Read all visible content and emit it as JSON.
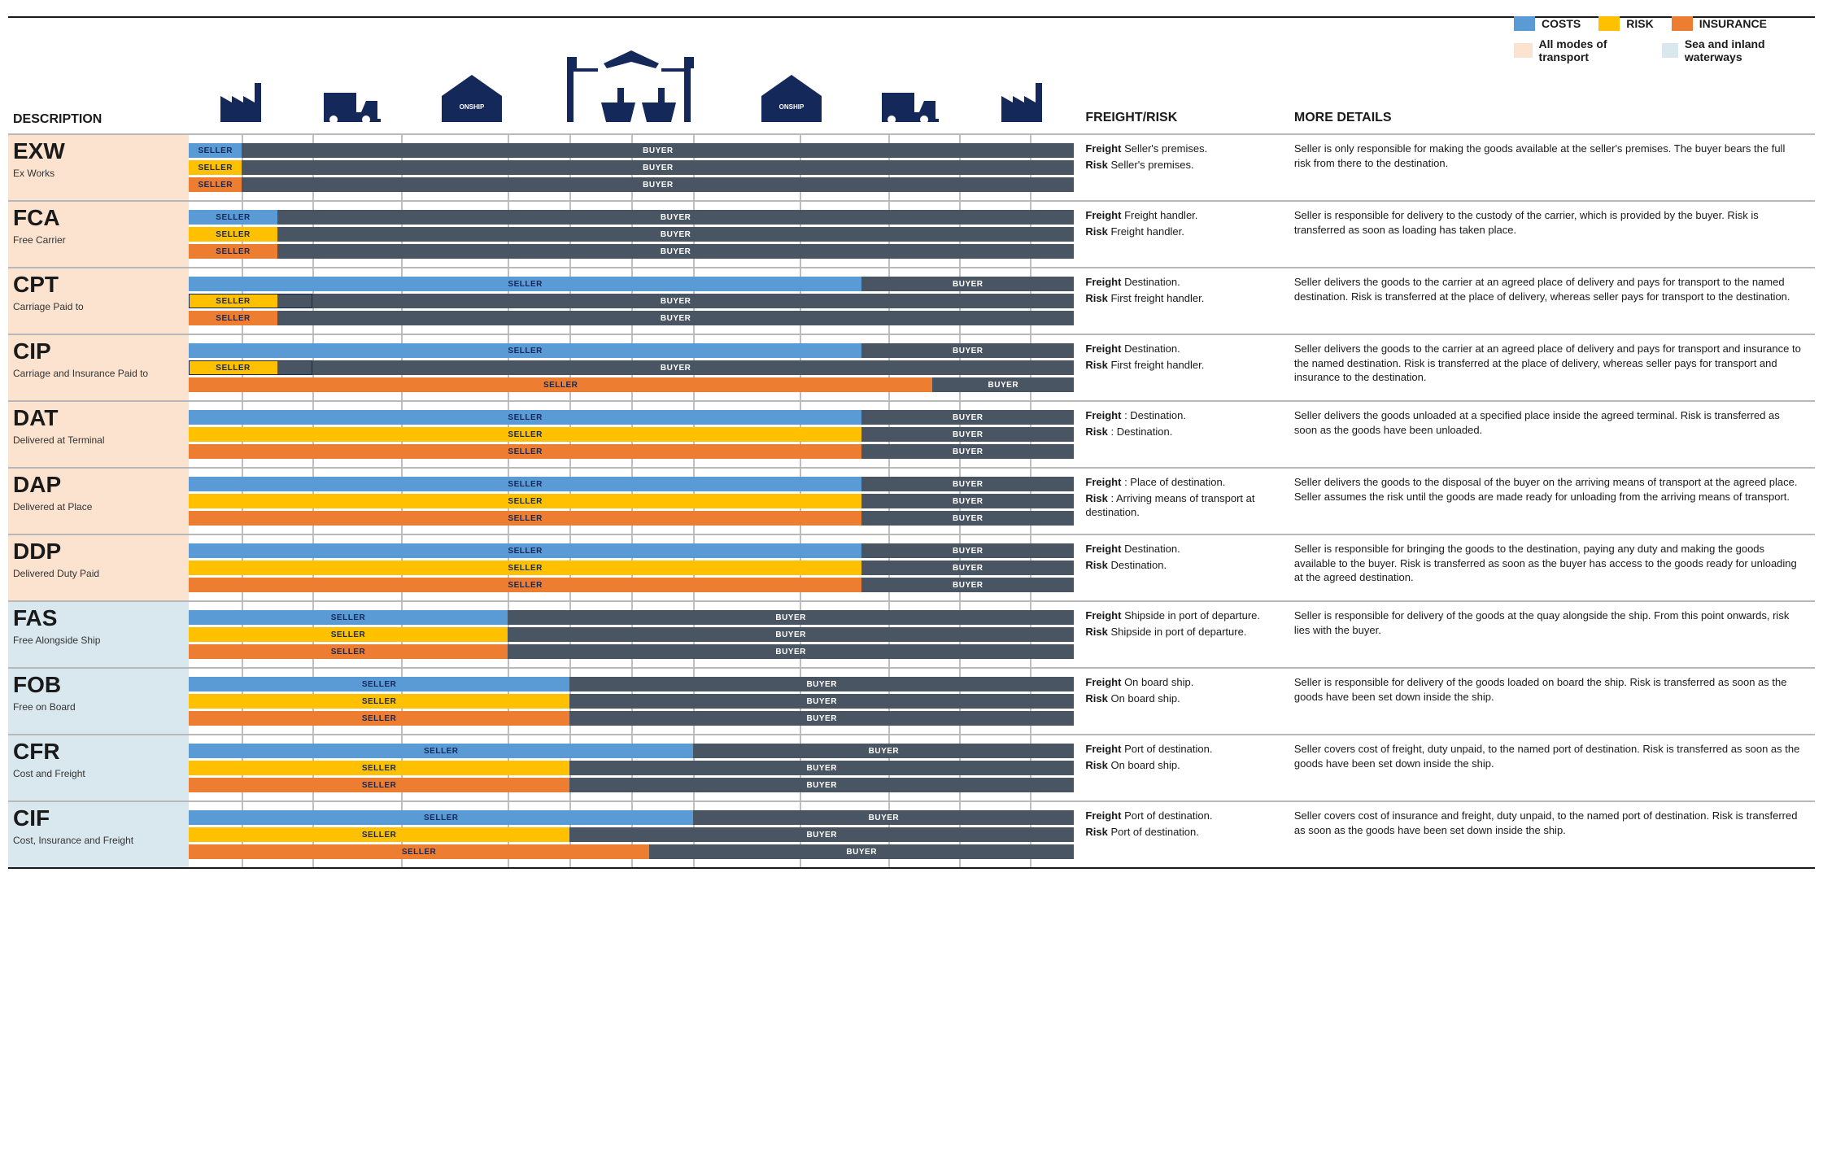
{
  "colors": {
    "costs": "#5b9bd5",
    "risk": "#ffc000",
    "insurance": "#ed7d31",
    "buyer": "#4a5563",
    "modeAll": "#fbe3d0",
    "modeSea": "#d9e8ef",
    "navy": "#14285a",
    "rule": "#b8b8b8"
  },
  "headers": {
    "desc": "DESCRIPTION",
    "fr": "FREIGHT/RISK",
    "det": "MORE DETAILS"
  },
  "legend": {
    "costs": "COSTS",
    "risk": "RISK",
    "insurance": "INSURANCE",
    "modeAll": "All modes of transport",
    "modeSea": "Sea and inland waterways"
  },
  "labels": {
    "seller": "SELLER",
    "buyer": "BUYER"
  },
  "guides": [
    6,
    14,
    24,
    36,
    43,
    50,
    57,
    69,
    79,
    87,
    95
  ],
  "terms": [
    {
      "code": "EXW",
      "name": "Ex Works",
      "mode": "all",
      "bars": {
        "costs": 6,
        "risk": 6,
        "insurance": 6
      },
      "freight": "Seller's premises.",
      "risk": "Seller's premises.",
      "details": "Seller is only responsible for making the goods available at the seller's premises. The buyer bears the full risk from there to the destination."
    },
    {
      "code": "FCA",
      "name": "Free Carrier",
      "mode": "all",
      "bars": {
        "costs": 10,
        "risk": 10,
        "insurance": 10
      },
      "freight": "Freight handler.",
      "risk": "Freight handler.",
      "details": "Seller is responsible for delivery to the custody of the carrier, which is provided by the buyer. Risk is transferred as soon as loading has taken place."
    },
    {
      "code": "CPT",
      "name": "Carriage Paid to",
      "mode": "all",
      "bars": {
        "costs": 76,
        "risk": 10,
        "insurance": 10
      },
      "riskOverlay": 14,
      "freight": " Destination.",
      "risk": "First freight handler.",
      "details": "Seller delivers the goods to the carrier at an agreed place of delivery and pays for transport to the named destination. Risk is transferred at the place of delivery, whereas seller pays for transport to the destination."
    },
    {
      "code": "CIP",
      "name": "Carriage and Insurance Paid to",
      "mode": "all",
      "bars": {
        "costs": 76,
        "risk": 10,
        "insurance": 84
      },
      "riskOverlay": 14,
      "freight": " Destination.",
      "risk": "First freight handler.",
      "details": "Seller delivers the goods to the carrier at an agreed place of delivery and pays for transport and insurance to the named destination. Risk is transferred at the place of delivery, whereas seller pays for transport and insurance to the destination."
    },
    {
      "code": "DAT",
      "name": "Delivered at Terminal",
      "mode": "all",
      "bars": {
        "costs": 76,
        "risk": 76,
        "insurance": 76
      },
      "freight": ": Destination.",
      "risk": ": Destination.",
      "details": "Seller delivers the goods unloaded at a specified place inside the agreed terminal. Risk is transferred as soon as the goods have been unloaded."
    },
    {
      "code": "DAP",
      "name": "Delivered at Place",
      "mode": "all",
      "bars": {
        "costs": 76,
        "risk": 76,
        "insurance": 76
      },
      "freight": ": Place of destination.",
      "risk": ": Arriving means of transport at destination.",
      "details": "Seller delivers the goods to the disposal of the buyer on the arriving means of transport at the agreed place. Seller assumes the risk until the goods are made ready for unloading from the arriving means of transport."
    },
    {
      "code": "DDP",
      "name": "Delivered Duty Paid",
      "mode": "all",
      "bars": {
        "costs": 76,
        "risk": 76,
        "insurance": 76
      },
      "freight": "Destination.",
      "risk": "Destination.",
      "details": "Seller is responsible for bringing the goods to the destination, paying any duty and making the goods available to the buyer. Risk is transferred as soon as the buyer has access to the goods ready for unloading at the agreed destination."
    },
    {
      "code": "FAS",
      "name": "Free Alongside Ship",
      "mode": "sea",
      "bars": {
        "costs": 36,
        "risk": 36,
        "insurance": 36
      },
      "freight": "Shipside in port of departure.",
      "risk": "Shipside in port of departure.",
      "details": "Seller is responsible for delivery of the goods at the quay alongside the ship. From this point onwards, risk lies with the buyer."
    },
    {
      "code": "FOB",
      "name": "Free on Board",
      "mode": "sea",
      "bars": {
        "costs": 43,
        "risk": 43,
        "insurance": 43
      },
      "freight": "On board ship.",
      "risk": "On board ship.",
      "details": "Seller is responsible for delivery of the goods loaded on board the ship. Risk is transferred as soon as the goods have been set down inside the ship."
    },
    {
      "code": "CFR",
      "name": "Cost and Freight",
      "mode": "sea",
      "bars": {
        "costs": 57,
        "risk": 43,
        "insurance": 43
      },
      "freight": "Port of destination.",
      "risk": "On board ship.",
      "details": "Seller covers cost of freight, duty unpaid, to the named port of destination. Risk is transferred as soon as the goods have been set down inside the ship."
    },
    {
      "code": "CIF",
      "name": "Cost, Insurance and Freight",
      "mode": "sea",
      "bars": {
        "costs": 57,
        "risk": 43,
        "insurance": 52
      },
      "freight": "Port of destination.",
      "risk": "Port of destination.",
      "details": "Seller covers cost of insurance and freight, duty unpaid, to the named port of destination. Risk is transferred as soon as the goods have been set down inside the ship."
    }
  ]
}
